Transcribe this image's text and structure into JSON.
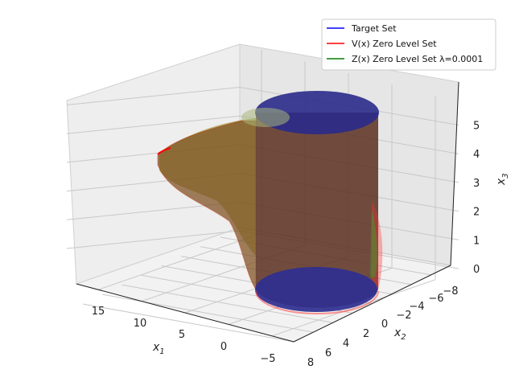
{
  "chart_data": {
    "type": "surface3d",
    "title": "",
    "axes": {
      "x1": {
        "label": "x1",
        "ticks": [
          "15",
          "10",
          "5",
          "0",
          "−5"
        ],
        "range": [
          -6,
          19
        ]
      },
      "x2": {
        "label": "x2",
        "ticks": [
          "−8",
          "−6",
          "−4",
          "−2",
          "0",
          "2",
          "4",
          "6",
          "8"
        ],
        "range": [
          -9,
          8
        ]
      },
      "x3": {
        "label": "x3",
        "ticks": [
          "0",
          "1",
          "2",
          "3",
          "4",
          "5"
        ],
        "range": [
          0,
          6
        ]
      }
    },
    "grid": true,
    "legend": {
      "placement": "top-right",
      "entries": [
        {
          "label": "Target Set",
          "color": "#0000ff"
        },
        {
          "label": "V(x) Zero Level Set",
          "color": "#ff0000"
        },
        {
          "label": "Z(x) Zero Level Set λ=0.0001",
          "color": "#008000"
        }
      ]
    },
    "series": [
      {
        "name": "Target Set",
        "shape": "cylinder",
        "center_x1": 0,
        "center_x2": 0,
        "radius": 5,
        "x3_range": [
          0,
          6
        ],
        "color": "#1a1a8c"
      },
      {
        "name": "V(x) Zero Level Set",
        "shape": "swept-tube",
        "x1_extent": [
          0,
          17
        ],
        "color": "#ff0000"
      },
      {
        "name": "Z(x) Zero Level Set λ=0.0001",
        "shape": "swept-tube",
        "x1_extent": [
          0,
          17
        ],
        "color": "#008000"
      }
    ]
  }
}
